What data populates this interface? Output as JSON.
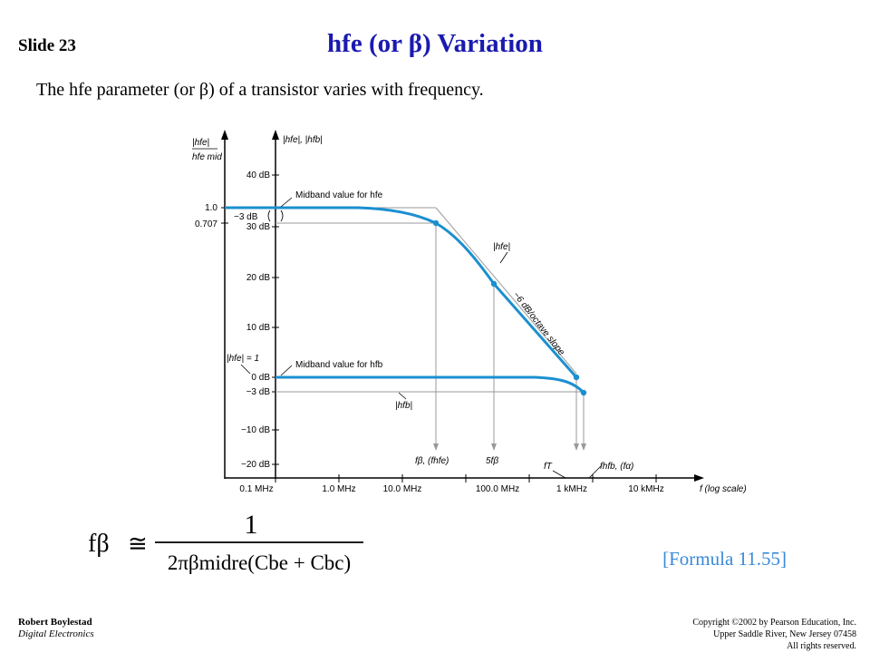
{
  "slide": {
    "number_label": "Slide 23",
    "title": "hfe (or β) Variation",
    "subtitle": "The hfe parameter (or β) of a transistor varies with frequency.",
    "formula": {
      "lhs": "fβ",
      "op": "≅",
      "numerator": "1",
      "denominator": "2πβmidre(Cbe + Cbc)",
      "reference": "[Formula 11.55]"
    },
    "footer": {
      "author": "Robert Boylestad",
      "book": "Digital Electronics",
      "copyright_line1": "Copyright ©2002 by Pearson Education, Inc.",
      "copyright_line2": "Upper Saddle River, New Jersey 07458",
      "copyright_line3": "All rights reserved."
    }
  },
  "figure": {
    "left_axis_title_top": "|hfe|",
    "left_axis_title_bottom": "hfe mid",
    "right_axis_title": "|hfe|, |hfb|",
    "left_ticks": [
      "1.0",
      "0.707"
    ],
    "db_ticks": [
      "40 dB",
      "30 dB",
      "20 dB",
      "10 dB",
      "0 dB",
      "−3 dB",
      "−10 dB",
      "−20 dB"
    ],
    "x_ticks": [
      "0.1 MHz",
      "1.0 MHz",
      "10.0 MHz",
      "100.0 MHz",
      "1 kMHz",
      "10 kMHz"
    ],
    "x_axis_label": "f (log scale)",
    "annotations": {
      "midband_hfe": "Midband value for hfe",
      "midband_hfb": "Midband value for hfb",
      "minus3db": "−3 dB",
      "hfe_eq1": "|hfe| = 1",
      "hfe_curve": "|hfe|",
      "hfb_curve": "|hfb|",
      "slope": "−6 dB/octave slope",
      "f_beta": "fβ, (fhfe)",
      "five_f_beta": "5fβ",
      "f_t": "fT",
      "f_alpha": "fhfb, (fα)"
    },
    "colors": {
      "curve": "#1b8fd0",
      "guide": "#999999",
      "title": "#1a1ab0",
      "reference": "#3a8ad8"
    }
  }
}
